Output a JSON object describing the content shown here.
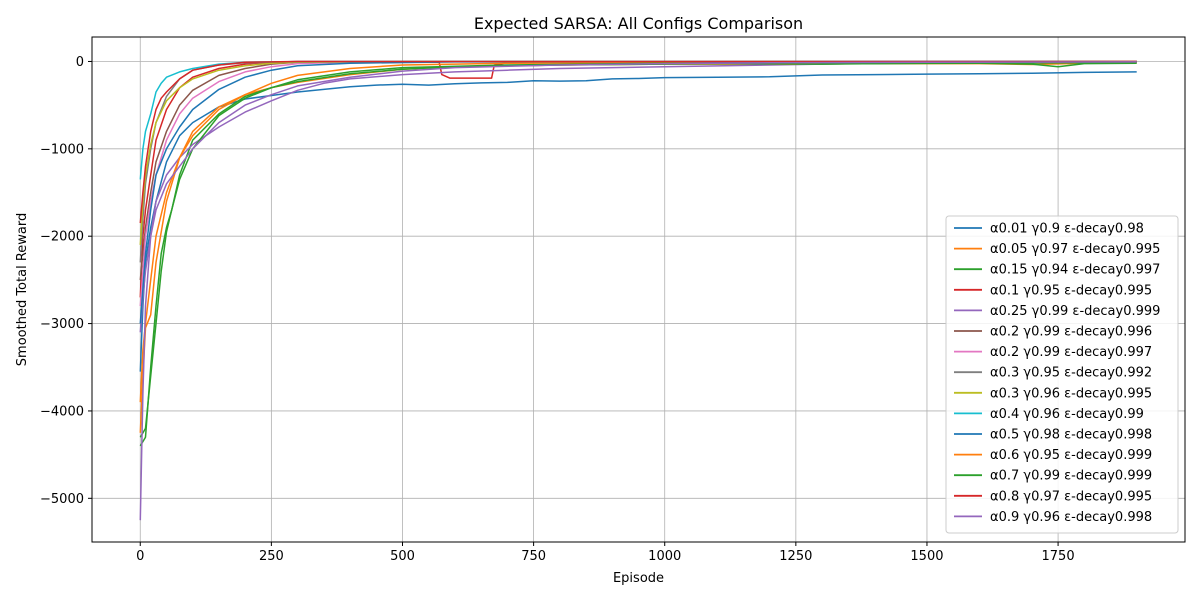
{
  "chart_data": {
    "type": "line",
    "title": "Expected SARSA: All Configs Comparison",
    "xlabel": "Episode",
    "ylabel": "Smoothed Total Reward",
    "xlim": [
      -92,
      1992
    ],
    "ylim": [
      -5500,
      280
    ],
    "xticks": [
      0,
      250,
      500,
      750,
      1000,
      1250,
      1500,
      1750
    ],
    "yticks": [
      -5000,
      -4000,
      -3000,
      -2000,
      -1000,
      0
    ],
    "grid": true,
    "legend_position": "center-right",
    "series": [
      {
        "name": "α0.01 γ0.9 ε-decay0.98",
        "color": "#1f77b4",
        "points": [
          [
            0,
            -3550
          ],
          [
            5,
            -2800
          ],
          [
            10,
            -2300
          ],
          [
            20,
            -1900
          ],
          [
            30,
            -1600
          ],
          [
            50,
            -1150
          ],
          [
            75,
            -850
          ],
          [
            100,
            -700
          ],
          [
            150,
            -520
          ],
          [
            200,
            -430
          ],
          [
            250,
            -390
          ],
          [
            300,
            -350
          ],
          [
            350,
            -320
          ],
          [
            400,
            -290
          ],
          [
            450,
            -270
          ],
          [
            500,
            -260
          ],
          [
            550,
            -270
          ],
          [
            600,
            -255
          ],
          [
            650,
            -245
          ],
          [
            700,
            -240
          ],
          [
            750,
            -220
          ],
          [
            800,
            -225
          ],
          [
            850,
            -220
          ],
          [
            900,
            -200
          ],
          [
            950,
            -195
          ],
          [
            1000,
            -185
          ],
          [
            1100,
            -180
          ],
          [
            1200,
            -175
          ],
          [
            1300,
            -155
          ],
          [
            1400,
            -150
          ],
          [
            1500,
            -145
          ],
          [
            1600,
            -140
          ],
          [
            1700,
            -135
          ],
          [
            1800,
            -125
          ],
          [
            1900,
            -120
          ]
        ]
      },
      {
        "name": "α0.05 γ0.97 ε-decay0.995",
        "color": "#ff7f0e",
        "points": [
          [
            0,
            -4250
          ],
          [
            5,
            -3600
          ],
          [
            10,
            -3050
          ],
          [
            20,
            -2900
          ],
          [
            30,
            -2300
          ],
          [
            50,
            -1600
          ],
          [
            75,
            -1100
          ],
          [
            100,
            -800
          ],
          [
            150,
            -520
          ],
          [
            200,
            -380
          ],
          [
            250,
            -300
          ],
          [
            300,
            -240
          ],
          [
            400,
            -150
          ],
          [
            500,
            -90
          ],
          [
            600,
            -60
          ],
          [
            800,
            -40
          ],
          [
            1000,
            -30
          ],
          [
            1200,
            -30
          ],
          [
            1400,
            -25
          ],
          [
            1600,
            -25
          ],
          [
            1700,
            -35
          ],
          [
            1800,
            -20
          ],
          [
            1900,
            -15
          ]
        ]
      },
      {
        "name": "α0.15 γ0.94 ε-decay0.997",
        "color": "#2ca02c",
        "points": [
          [
            0,
            -4400
          ],
          [
            10,
            -4300
          ],
          [
            20,
            -3500
          ],
          [
            30,
            -2800
          ],
          [
            40,
            -2200
          ],
          [
            50,
            -1900
          ],
          [
            60,
            -1700
          ],
          [
            75,
            -1300
          ],
          [
            100,
            -900
          ],
          [
            150,
            -600
          ],
          [
            200,
            -400
          ],
          [
            250,
            -300
          ],
          [
            300,
            -230
          ],
          [
            400,
            -140
          ],
          [
            500,
            -90
          ],
          [
            600,
            -60
          ],
          [
            800,
            -40
          ],
          [
            1000,
            -30
          ],
          [
            1200,
            -20
          ],
          [
            1400,
            -25
          ],
          [
            1600,
            -20
          ],
          [
            1700,
            -30
          ],
          [
            1750,
            -60
          ],
          [
            1800,
            -25
          ],
          [
            1900,
            -20
          ]
        ]
      },
      {
        "name": "α0.1 γ0.95 ε-decay0.995",
        "color": "#d62728",
        "points": [
          [
            0,
            -2700
          ],
          [
            5,
            -2000
          ],
          [
            10,
            -1700
          ],
          [
            20,
            -1300
          ],
          [
            30,
            -900
          ],
          [
            50,
            -550
          ],
          [
            75,
            -300
          ],
          [
            100,
            -180
          ],
          [
            150,
            -80
          ],
          [
            200,
            -30
          ],
          [
            250,
            -10
          ],
          [
            300,
            0
          ],
          [
            400,
            -2
          ],
          [
            500,
            -5
          ],
          [
            570,
            -10
          ],
          [
            575,
            -150
          ],
          [
            590,
            -190
          ],
          [
            620,
            -190
          ],
          [
            670,
            -190
          ],
          [
            675,
            -40
          ],
          [
            700,
            -15
          ],
          [
            800,
            -5
          ],
          [
            1000,
            -3
          ],
          [
            1500,
            -2
          ],
          [
            1900,
            0
          ]
        ]
      },
      {
        "name": "α0.25 γ0.99 ε-decay0.999",
        "color": "#9467bd",
        "points": [
          [
            0,
            -3100
          ],
          [
            5,
            -2700
          ],
          [
            10,
            -2400
          ],
          [
            20,
            -2000
          ],
          [
            30,
            -1600
          ],
          [
            50,
            -1300
          ],
          [
            75,
            -1100
          ],
          [
            100,
            -950
          ],
          [
            150,
            -750
          ],
          [
            200,
            -580
          ],
          [
            250,
            -450
          ],
          [
            300,
            -330
          ],
          [
            350,
            -250
          ],
          [
            400,
            -200
          ],
          [
            500,
            -150
          ],
          [
            600,
            -120
          ],
          [
            700,
            -100
          ],
          [
            800,
            -80
          ],
          [
            1000,
            -60
          ],
          [
            1200,
            -40
          ],
          [
            1400,
            -20
          ],
          [
            1600,
            -10
          ],
          [
            1900,
            0
          ]
        ]
      },
      {
        "name": "α0.2 γ0.99 ε-decay0.996",
        "color": "#8c564b",
        "points": [
          [
            0,
            -2500
          ],
          [
            5,
            -2200
          ],
          [
            10,
            -1900
          ],
          [
            20,
            -1500
          ],
          [
            30,
            -1150
          ],
          [
            50,
            -800
          ],
          [
            75,
            -500
          ],
          [
            100,
            -330
          ],
          [
            150,
            -160
          ],
          [
            200,
            -80
          ],
          [
            250,
            -30
          ],
          [
            300,
            -10
          ],
          [
            400,
            -3
          ],
          [
            600,
            0
          ],
          [
            1900,
            0
          ]
        ]
      },
      {
        "name": "α0.2 γ0.99 ε-decay0.997",
        "color": "#e377c2",
        "points": [
          [
            0,
            -2800
          ],
          [
            5,
            -2400
          ],
          [
            10,
            -2000
          ],
          [
            20,
            -1600
          ],
          [
            30,
            -1300
          ],
          [
            50,
            -900
          ],
          [
            75,
            -600
          ],
          [
            100,
            -420
          ],
          [
            150,
            -230
          ],
          [
            200,
            -120
          ],
          [
            250,
            -60
          ],
          [
            300,
            -25
          ],
          [
            400,
            -8
          ],
          [
            600,
            -2
          ],
          [
            1900,
            0
          ]
        ]
      },
      {
        "name": "α0.3 γ0.95 ε-decay0.992",
        "color": "#7f7f7f",
        "points": [
          [
            0,
            -2300
          ],
          [
            5,
            -1800
          ],
          [
            10,
            -1400
          ],
          [
            20,
            -1000
          ],
          [
            30,
            -700
          ],
          [
            50,
            -400
          ],
          [
            75,
            -200
          ],
          [
            100,
            -100
          ],
          [
            150,
            -40
          ],
          [
            200,
            -15
          ],
          [
            300,
            -3
          ],
          [
            500,
            0
          ],
          [
            1900,
            0
          ]
        ]
      },
      {
        "name": "α0.3 γ0.96 ε-decay0.995",
        "color": "#bcbd22",
        "points": [
          [
            0,
            -2100
          ],
          [
            5,
            -1600
          ],
          [
            10,
            -1300
          ],
          [
            20,
            -950
          ],
          [
            30,
            -700
          ],
          [
            50,
            -450
          ],
          [
            75,
            -300
          ],
          [
            100,
            -200
          ],
          [
            150,
            -100
          ],
          [
            200,
            -50
          ],
          [
            250,
            -20
          ],
          [
            300,
            -8
          ],
          [
            500,
            -2
          ],
          [
            1900,
            0
          ]
        ]
      },
      {
        "name": "α0.4 γ0.96 ε-decay0.99",
        "color": "#17becf",
        "points": [
          [
            0,
            -1350
          ],
          [
            5,
            -1000
          ],
          [
            10,
            -800
          ],
          [
            20,
            -600
          ],
          [
            30,
            -350
          ],
          [
            40,
            -250
          ],
          [
            50,
            -180
          ],
          [
            75,
            -120
          ],
          [
            100,
            -80
          ],
          [
            150,
            -30
          ],
          [
            200,
            -10
          ],
          [
            300,
            -2
          ],
          [
            500,
            0
          ],
          [
            1900,
            0
          ]
        ]
      },
      {
        "name": "α0.5 γ0.98 ε-decay0.998",
        "color": "#1f77b4",
        "points": [
          [
            0,
            -3000
          ],
          [
            5,
            -2600
          ],
          [
            10,
            -2200
          ],
          [
            20,
            -1700
          ],
          [
            30,
            -1300
          ],
          [
            50,
            -1000
          ],
          [
            75,
            -750
          ],
          [
            100,
            -550
          ],
          [
            150,
            -320
          ],
          [
            200,
            -180
          ],
          [
            250,
            -100
          ],
          [
            300,
            -50
          ],
          [
            400,
            -20
          ],
          [
            600,
            -5
          ],
          [
            1900,
            0
          ]
        ]
      },
      {
        "name": "α0.6 γ0.95 ε-decay0.999",
        "color": "#ff7f0e",
        "points": [
          [
            0,
            -3900
          ],
          [
            5,
            -3300
          ],
          [
            10,
            -3000
          ],
          [
            20,
            -2500
          ],
          [
            30,
            -2000
          ],
          [
            50,
            -1500
          ],
          [
            75,
            -1100
          ],
          [
            100,
            -850
          ],
          [
            150,
            -550
          ],
          [
            200,
            -380
          ],
          [
            250,
            -250
          ],
          [
            300,
            -160
          ],
          [
            400,
            -80
          ],
          [
            500,
            -40
          ],
          [
            700,
            -20
          ],
          [
            1000,
            -15
          ],
          [
            1250,
            -30
          ],
          [
            1300,
            -10
          ],
          [
            1900,
            0
          ]
        ]
      },
      {
        "name": "α0.7 γ0.99 ε-decay0.999",
        "color": "#2ca02c",
        "points": [
          [
            0,
            -4300
          ],
          [
            10,
            -4200
          ],
          [
            20,
            -3600
          ],
          [
            30,
            -3000
          ],
          [
            40,
            -2400
          ],
          [
            50,
            -1950
          ],
          [
            60,
            -1700
          ],
          [
            75,
            -1350
          ],
          [
            100,
            -1000
          ],
          [
            150,
            -620
          ],
          [
            200,
            -420
          ],
          [
            250,
            -300
          ],
          [
            300,
            -210
          ],
          [
            400,
            -120
          ],
          [
            500,
            -70
          ],
          [
            700,
            -40
          ],
          [
            1000,
            -20
          ],
          [
            1300,
            -30
          ],
          [
            1500,
            -20
          ],
          [
            1800,
            -15
          ],
          [
            1900,
            -10
          ]
        ]
      },
      {
        "name": "α0.8 γ0.97 ε-decay0.995",
        "color": "#d62728",
        "points": [
          [
            0,
            -1850
          ],
          [
            5,
            -1500
          ],
          [
            10,
            -1200
          ],
          [
            20,
            -800
          ],
          [
            30,
            -550
          ],
          [
            40,
            -420
          ],
          [
            50,
            -350
          ],
          [
            75,
            -200
          ],
          [
            100,
            -100
          ],
          [
            150,
            -40
          ],
          [
            200,
            -10
          ],
          [
            300,
            0
          ],
          [
            1900,
            0
          ]
        ]
      },
      {
        "name": "α0.9 γ0.96 ε-decay0.998",
        "color": "#9467bd",
        "points": [
          [
            0,
            -5250
          ],
          [
            3,
            -4400
          ],
          [
            5,
            -3800
          ],
          [
            10,
            -2800
          ],
          [
            20,
            -2000
          ],
          [
            30,
            -1700
          ],
          [
            50,
            -1400
          ],
          [
            75,
            -1200
          ],
          [
            100,
            -1000
          ],
          [
            150,
            -700
          ],
          [
            200,
            -500
          ],
          [
            250,
            -380
          ],
          [
            300,
            -280
          ],
          [
            400,
            -180
          ],
          [
            500,
            -110
          ],
          [
            600,
            -70
          ],
          [
            800,
            -40
          ],
          [
            1000,
            -25
          ],
          [
            1200,
            -15
          ],
          [
            1500,
            -10
          ],
          [
            1900,
            -5
          ]
        ]
      }
    ]
  }
}
